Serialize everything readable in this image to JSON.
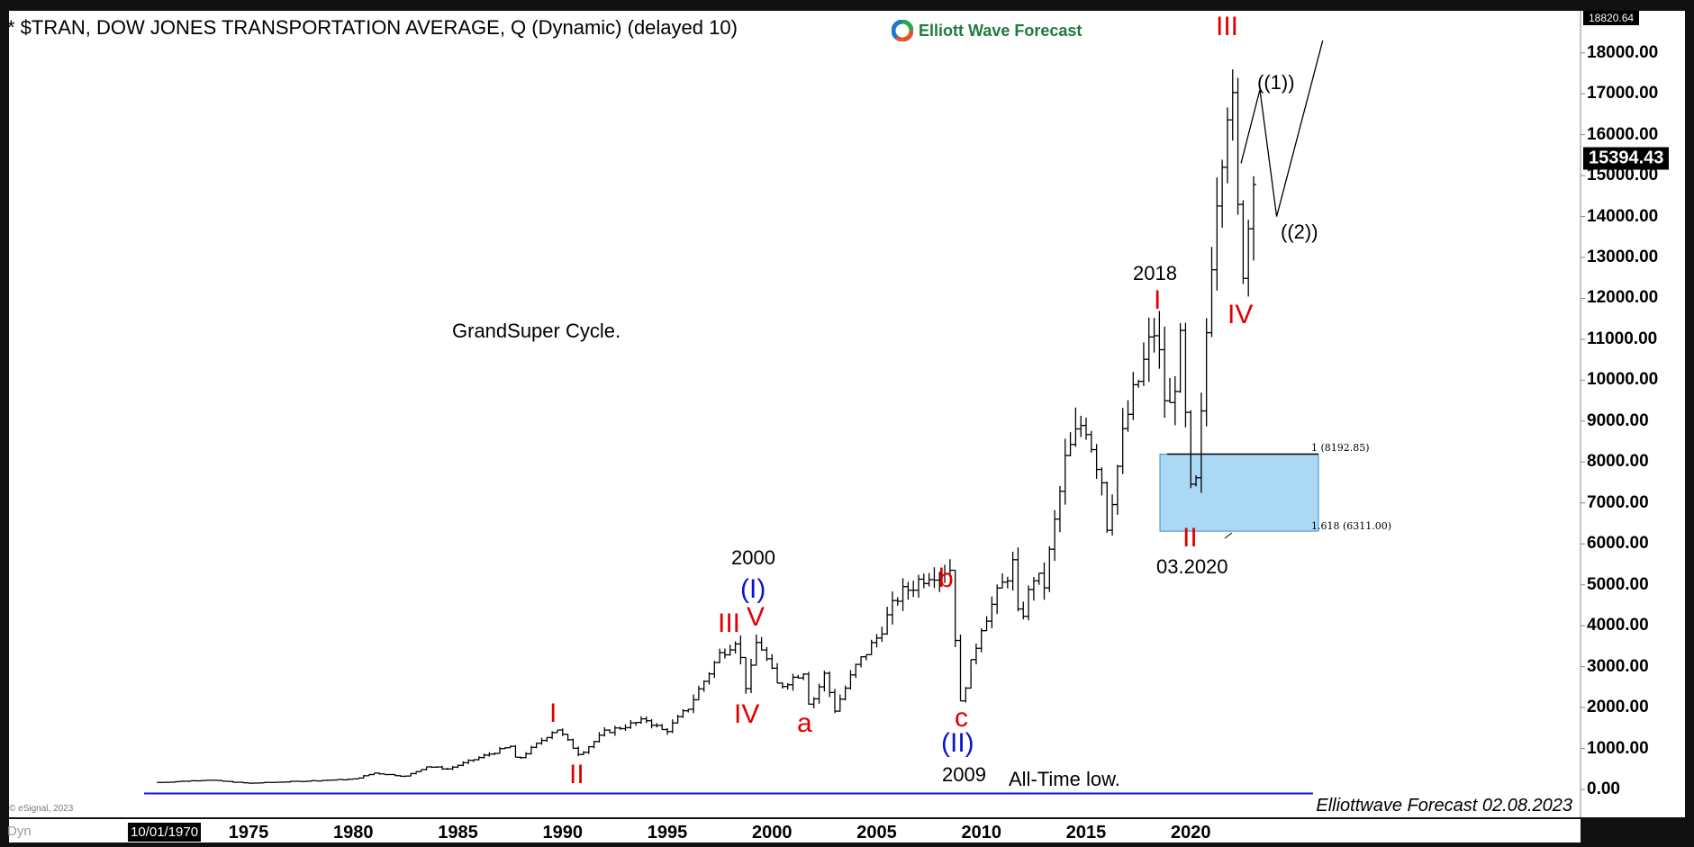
{
  "header": {
    "title": "* $TRAN, DOW JONES TRANSPORTATION AVERAGE, Q (Dynamic) (delayed 10)",
    "logo_text": "Elliott Wave Forecast"
  },
  "price_tags": {
    "high": "18820.64",
    "last": "15394.43"
  },
  "x_axis": {
    "start_date": "10/01/1970",
    "dyn": "Dyn"
  },
  "footer": {
    "copyright": "© eSignal, 2023",
    "signature": "Elliottwave Forecast 02.08.2023"
  },
  "fib": {
    "level1": "1 (8192.85)",
    "level2": "1.618 (6311.00)"
  },
  "annotations": {
    "grand": "GrandSuper Cycle.",
    "all_time_low": "All-Time low.",
    "y2000": "2000",
    "y2009": "2009",
    "y2018": "2018",
    "m2020": "03.2020",
    "p_I_1": "I",
    "p_II_1": "II",
    "p_III_1": "III",
    "p_IV_1": "IV",
    "p_V_1": "V",
    "cycle_I": "(I)",
    "cycle_II": "(II)",
    "a": "a",
    "b": "b",
    "c": "c",
    "p_I_2": "I",
    "p_II_2": "II",
    "p_III_2": "III",
    "p_IV_2": "IV",
    "w1": "((1))",
    "w2": "((2))"
  },
  "colors": {
    "bar": "#000000",
    "wave_red": "#e00000",
    "cycle_blue": "#0a14c8",
    "fib_box": "#aad8f5",
    "low_line": "#1010d0"
  },
  "chart_data": {
    "type": "ohlc",
    "title": "$TRAN, DOW JONES TRANSPORTATION AVERAGE, Q",
    "ylim": [
      0,
      18820.64
    ],
    "y_ticks": [
      "0.00",
      "1000.00",
      "2000.00",
      "3000.00",
      "4000.00",
      "5000.00",
      "6000.00",
      "7000.00",
      "8000.00",
      "9000.00",
      "10000.00",
      "11000.00",
      "12000.00",
      "13000.00",
      "14000.00",
      "15000.00",
      "16000.00",
      "17000.00",
      "18000.00"
    ],
    "x_ticks": [
      "1975",
      "1980",
      "1985",
      "1990",
      "1995",
      "2000",
      "2005",
      "2010",
      "2015",
      "2020"
    ],
    "close_anchors": [
      [
        1970.75,
        170
      ],
      [
        1973,
        230
      ],
      [
        1975,
        150
      ],
      [
        1980,
        250
      ],
      [
        1981,
        400
      ],
      [
        1982.5,
        320
      ],
      [
        1983.5,
        560
      ],
      [
        1984.5,
        500
      ],
      [
        1987.5,
        1050
      ],
      [
        1987.8,
        700
      ],
      [
        1989.7,
        1500
      ],
      [
        1990.8,
        850
      ],
      [
        1992,
        1400
      ],
      [
        1994,
        1700
      ],
      [
        1994.9,
        1400
      ],
      [
        1996,
        2000
      ],
      [
        1997.5,
        3300
      ],
      [
        1998.3,
        3700
      ],
      [
        1998.8,
        2400
      ],
      [
        1999.3,
        3700
      ],
      [
        2000.3,
        2500
      ],
      [
        2001.5,
        2900
      ],
      [
        2001.8,
        2000
      ],
      [
        2002.5,
        2800
      ],
      [
        2003,
        1950
      ],
      [
        2004,
        3000
      ],
      [
        2005,
        3700
      ],
      [
        2006,
        4700
      ],
      [
        2007.5,
        5300
      ],
      [
        2008.5,
        5400
      ],
      [
        2009,
        2100
      ],
      [
        2010,
        4000
      ],
      [
        2011.5,
        5500
      ],
      [
        2011.8,
        4000
      ],
      [
        2012.5,
        5200
      ],
      [
        2013,
        5000
      ],
      [
        2014,
        8000
      ],
      [
        2014.9,
        9100
      ],
      [
        2015.8,
        7500
      ],
      [
        2016,
        6500
      ],
      [
        2016.9,
        9000
      ],
      [
        2018.3,
        11300
      ],
      [
        2018.9,
        9000
      ],
      [
        2019.5,
        10800
      ],
      [
        2020.1,
        6500
      ],
      [
        2020.5,
        9000
      ],
      [
        2020.9,
        12500
      ],
      [
        2021.3,
        15000
      ],
      [
        2021.9,
        17500
      ],
      [
        2022.4,
        12500
      ],
      [
        2022.8,
        14000
      ],
      [
        2023,
        15394.43
      ]
    ],
    "projection": [
      [
        2022.4,
        15300
      ],
      [
        2023.3,
        17100
      ],
      [
        2024.1,
        14000
      ],
      [
        2026.3,
        18300
      ]
    ],
    "fib_levels": [
      8192.85,
      6311.0
    ],
    "all_time_low_level": -100
  }
}
